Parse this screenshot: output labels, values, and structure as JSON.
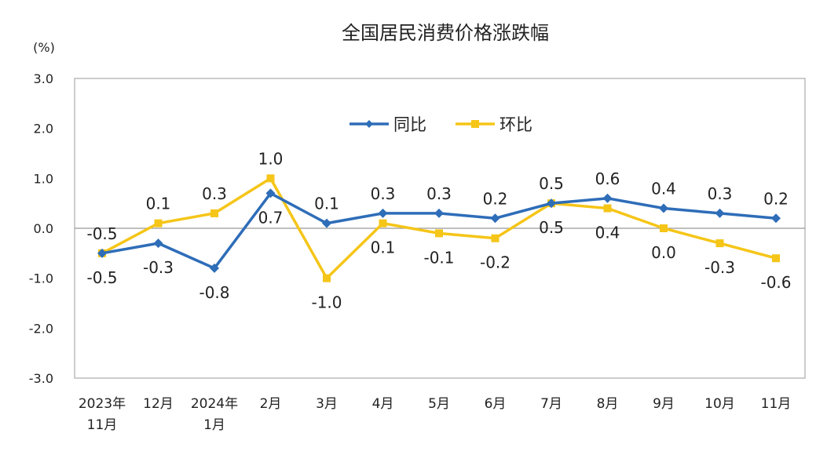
{
  "chart_data": {
    "type": "line",
    "title": "全国居民消费价格涨跌幅",
    "ylabel": "(%)",
    "xlabel": "",
    "ylim": [
      -3.0,
      3.0
    ],
    "yticks": [
      "3.0",
      "2.0",
      "1.0",
      "0.0",
      "-1.0",
      "-2.0",
      "-3.0"
    ],
    "ytick_values": [
      3,
      2,
      1,
      0,
      -1,
      -2,
      -3
    ],
    "categories": [
      [
        "2023年",
        "11月"
      ],
      [
        "12月"
      ],
      [
        "2024年",
        "1月"
      ],
      [
        "2月"
      ],
      [
        "3月"
      ],
      [
        "4月"
      ],
      [
        "5月"
      ],
      [
        "6月"
      ],
      [
        "7月"
      ],
      [
        "8月"
      ],
      [
        "9月"
      ],
      [
        "10月"
      ],
      [
        "11月"
      ]
    ],
    "legend_position": "top-center",
    "grid": false,
    "series": [
      {
        "name": "同比",
        "color": "#2E6DB8",
        "marker": "diamond",
        "values": [
          -0.5,
          -0.3,
          -0.8,
          0.7,
          0.1,
          0.3,
          0.3,
          0.2,
          0.5,
          0.6,
          0.4,
          0.3,
          0.2
        ],
        "labels": [
          "-0.5",
          "-0.3",
          "-0.8",
          "0.7",
          "0.1",
          "0.3",
          "0.3",
          "0.2",
          "0.5",
          "0.6",
          "0.4",
          "0.3",
          "0.2"
        ]
      },
      {
        "name": "环比",
        "color": "#F5C518",
        "marker": "square",
        "values": [
          -0.5,
          0.1,
          0.3,
          1.0,
          -1.0,
          0.1,
          -0.1,
          -0.2,
          0.5,
          0.4,
          0.0,
          -0.3,
          -0.6
        ],
        "labels": [
          "-0.5",
          "0.1",
          "0.3",
          "1.0",
          "-1.0",
          "0.1",
          "-0.1",
          "-0.2",
          "0.5",
          "0.4",
          "0.0",
          "-0.3",
          "-0.6"
        ]
      }
    ]
  }
}
